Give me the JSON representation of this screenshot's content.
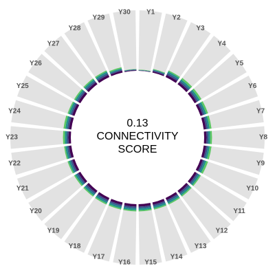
{
  "chart_data": {
    "type": "radial-stacked-bar",
    "center_value": 0.13,
    "center_text": [
      "CONNECTIVITY",
      "SCORE"
    ],
    "categories": [
      "Y1",
      "Y2",
      "Y3",
      "Y4",
      "Y5",
      "Y6",
      "Y7",
      "Y8",
      "Y9",
      "Y10",
      "Y11",
      "Y12",
      "Y13",
      "Y14",
      "Y15",
      "Y16",
      "Y17",
      "Y18",
      "Y19",
      "Y20",
      "Y21",
      "Y22",
      "Y23",
      "Y24",
      "Y25",
      "Y26",
      "Y27",
      "Y28",
      "Y29",
      "Y30"
    ],
    "ylim": [
      0,
      1
    ],
    "background_color": "#e2e2e2",
    "series": [
      {
        "color": "#440154",
        "values": [
          0.005,
          0.02,
          0.04,
          0.04,
          0.04,
          0.04,
          0.04,
          0.04,
          0.04,
          0.04,
          0.04,
          0.04,
          0.04,
          0.04,
          0.04,
          0.04,
          0.04,
          0.04,
          0.04,
          0.04,
          0.04,
          0.04,
          0.04,
          0.04,
          0.04,
          0.04,
          0.04,
          0.04,
          0.03,
          0.01
        ]
      },
      {
        "color": "#3b528b",
        "values": [
          0.005,
          0.02,
          0.03,
          0.03,
          0.03,
          0.03,
          0.03,
          0.03,
          0.03,
          0.03,
          0.03,
          0.03,
          0.03,
          0.03,
          0.03,
          0.03,
          0.03,
          0.03,
          0.03,
          0.03,
          0.03,
          0.03,
          0.03,
          0.03,
          0.03,
          0.03,
          0.03,
          0.03,
          0.02,
          0.01
        ]
      },
      {
        "color": "#21908c",
        "values": [
          0.005,
          0.01,
          0.03,
          0.03,
          0.03,
          0.03,
          0.03,
          0.03,
          0.03,
          0.03,
          0.03,
          0.03,
          0.03,
          0.03,
          0.03,
          0.03,
          0.03,
          0.03,
          0.03,
          0.03,
          0.03,
          0.03,
          0.03,
          0.03,
          0.03,
          0.03,
          0.03,
          0.03,
          0.02,
          0.005
        ]
      },
      {
        "color": "#5dc863",
        "values": [
          0.005,
          0.01,
          0.02,
          0.03,
          0.03,
          0.03,
          0.03,
          0.03,
          0.03,
          0.03,
          0.02,
          0.02,
          0.02,
          0.02,
          0.02,
          0.02,
          0.02,
          0.02,
          0.02,
          0.02,
          0.02,
          0.02,
          0.03,
          0.03,
          0.02,
          0.02,
          0.02,
          0.02,
          0.02,
          0.005
        ]
      }
    ]
  }
}
